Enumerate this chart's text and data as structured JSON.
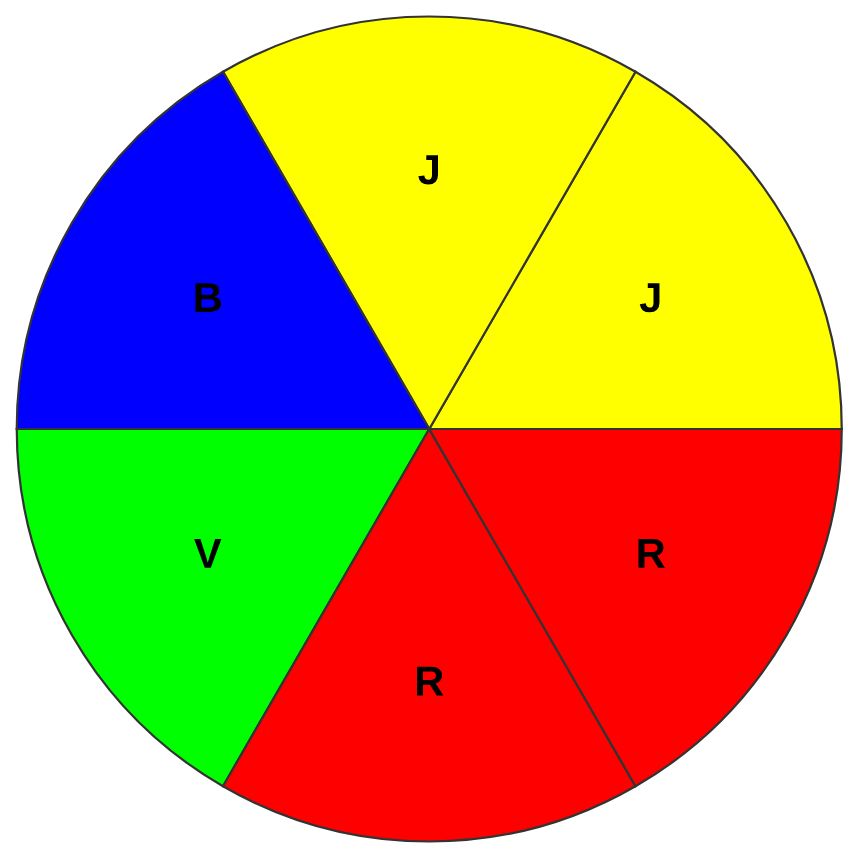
{
  "chart_data": {
    "type": "pie",
    "categories": [
      "J",
      "J",
      "B",
      "V",
      "R",
      "R"
    ],
    "values": [
      16.67,
      16.67,
      16.67,
      16.67,
      16.67,
      16.67
    ],
    "colors": [
      "#ffff00",
      "#ffff00",
      "#0000ff",
      "#00ff00",
      "#ff0000",
      "#ff0000"
    ]
  }
}
